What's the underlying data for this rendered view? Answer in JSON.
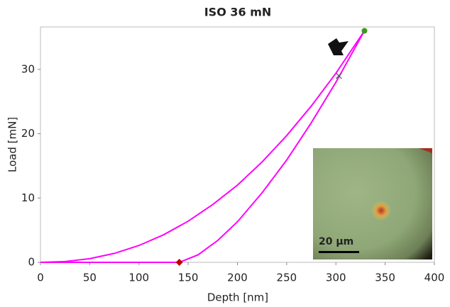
{
  "chart_data": {
    "type": "line",
    "title": "ISO 36 mN",
    "x_label": "Depth [nm]",
    "y_label": "Load [mN]",
    "xlim": [
      0,
      400
    ],
    "xticks": [
      0,
      50,
      100,
      150,
      200,
      250,
      300,
      350,
      400
    ],
    "ylim": [
      0,
      36.6
    ],
    "yticks": [
      0,
      10,
      20,
      30
    ],
    "series": [
      {
        "color": "#ff00ff",
        "x": [
          0,
          25,
          50,
          75,
          100,
          125,
          150,
          175,
          200,
          225,
          250,
          275,
          300,
          329
        ],
        "values": [
          0,
          0.12,
          0.57,
          1.39,
          2.62,
          4.28,
          6.4,
          8.99,
          12.0,
          15.6,
          19.7,
          24.3,
          29.4,
          36
        ]
      },
      {
        "color": "#ff00ff",
        "x": [
          0,
          141,
          160,
          180,
          200,
          225,
          250,
          275,
          300,
          329
        ],
        "values": [
          0,
          0,
          1.16,
          3.4,
          6.3,
          10.8,
          15.9,
          21.7,
          28.0,
          36
        ]
      }
    ],
    "markers": [
      {
        "x": 141,
        "y": 0,
        "color": "#c00000",
        "shape": "diamond"
      },
      {
        "x": 329,
        "y": 36,
        "color": "#3a9a1a",
        "shape": "circle"
      },
      {
        "x": 303,
        "y": 29,
        "color": "#555555",
        "shape": "cross"
      }
    ],
    "scale_bar_label": "20 µm"
  }
}
